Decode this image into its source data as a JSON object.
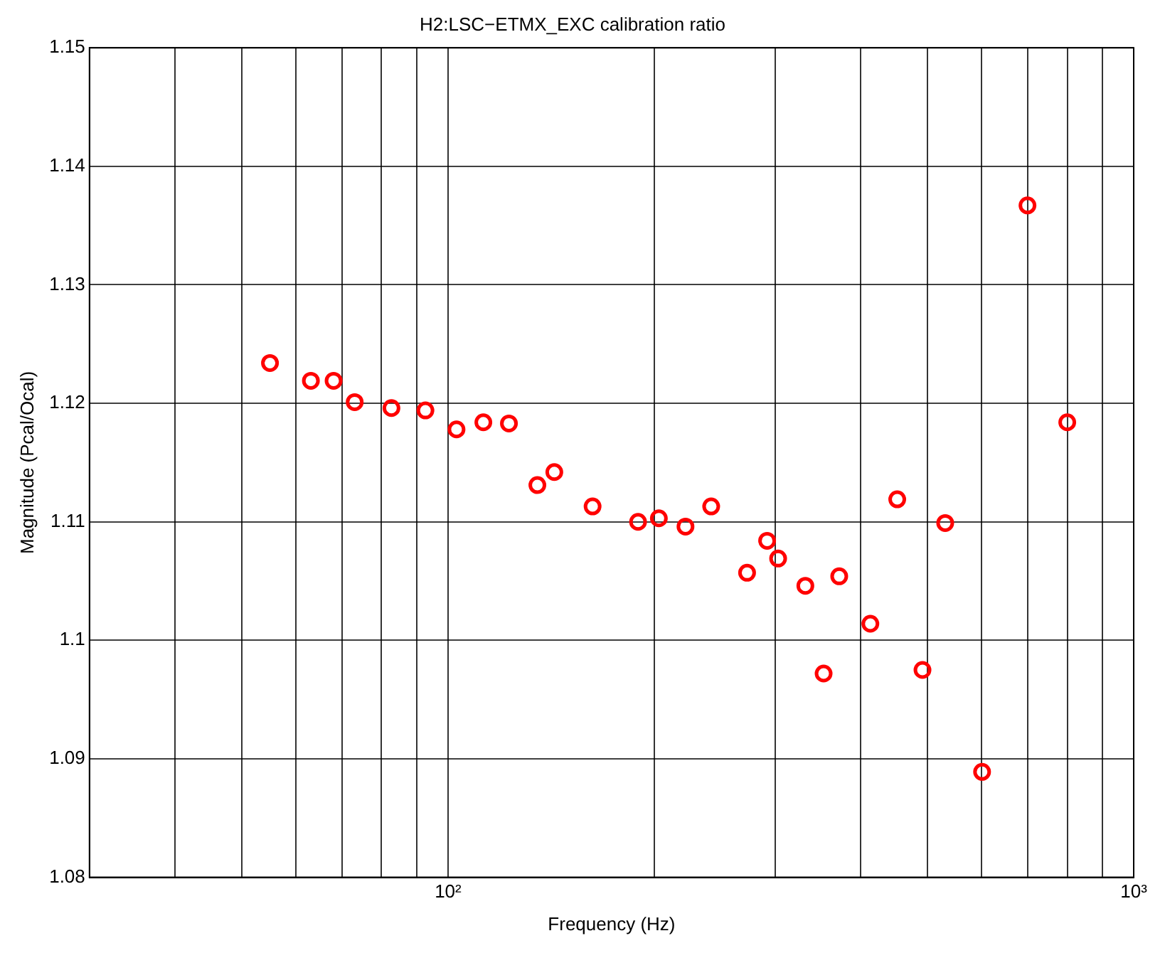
{
  "chart_data": {
    "type": "scatter",
    "title": "H2:LSC−ETMX_EXC calibration ratio",
    "xlabel": "Frequency (Hz)",
    "ylabel": "Magnitude (Pcal/Ocal)",
    "log": "x",
    "grid": true,
    "marker": "circle",
    "legend": false,
    "xlim": [
      30,
      1000
    ],
    "xticks": [
      {
        "value": 40,
        "label": null
      },
      {
        "value": 50,
        "label": null
      },
      {
        "value": 60,
        "label": null
      },
      {
        "value": 70,
        "label": null
      },
      {
        "value": 80,
        "label": null
      },
      {
        "value": 90,
        "label": null
      },
      {
        "value": 100,
        "label": "10²"
      },
      {
        "value": 200,
        "label": null
      },
      {
        "value": 300,
        "label": null
      },
      {
        "value": 400,
        "label": null
      },
      {
        "value": 500,
        "label": null
      },
      {
        "value": 600,
        "label": null
      },
      {
        "value": 700,
        "label": null
      },
      {
        "value": 800,
        "label": null
      },
      {
        "value": 900,
        "label": null
      },
      {
        "value": 1000,
        "label": "10³"
      }
    ],
    "ylim": [
      1.08,
      1.15
    ],
    "yticks": [
      1.08,
      1.09,
      1.1,
      1.11,
      1.12,
      1.13,
      1.14,
      1.15
    ],
    "series": [
      {
        "color": "#ff0000",
        "x": [
          55.0,
          63.1,
          68.1,
          73.1,
          82.7,
          92.7,
          102.9,
          112.6,
          122.7,
          135,
          142.9,
          162.5,
          189.3,
          203,
          222,
          242,
          273,
          292,
          303,
          332,
          353,
          372,
          413,
          452,
          492,
          531,
          601,
          700,
          800
        ],
        "values": [
          1.1234,
          1.1219,
          1.1219,
          1.1201,
          1.1196,
          1.1194,
          1.1178,
          1.1184,
          1.1183,
          1.1131,
          1.1142,
          1.1113,
          1.11,
          1.1103,
          1.1096,
          1.1113,
          1.1057,
          1.1084,
          1.1069,
          1.1046,
          1.0972,
          1.1054,
          1.1014,
          1.1119,
          1.0975,
          1.1099,
          1.0889,
          1.1367,
          1.1184
        ]
      }
    ]
  }
}
